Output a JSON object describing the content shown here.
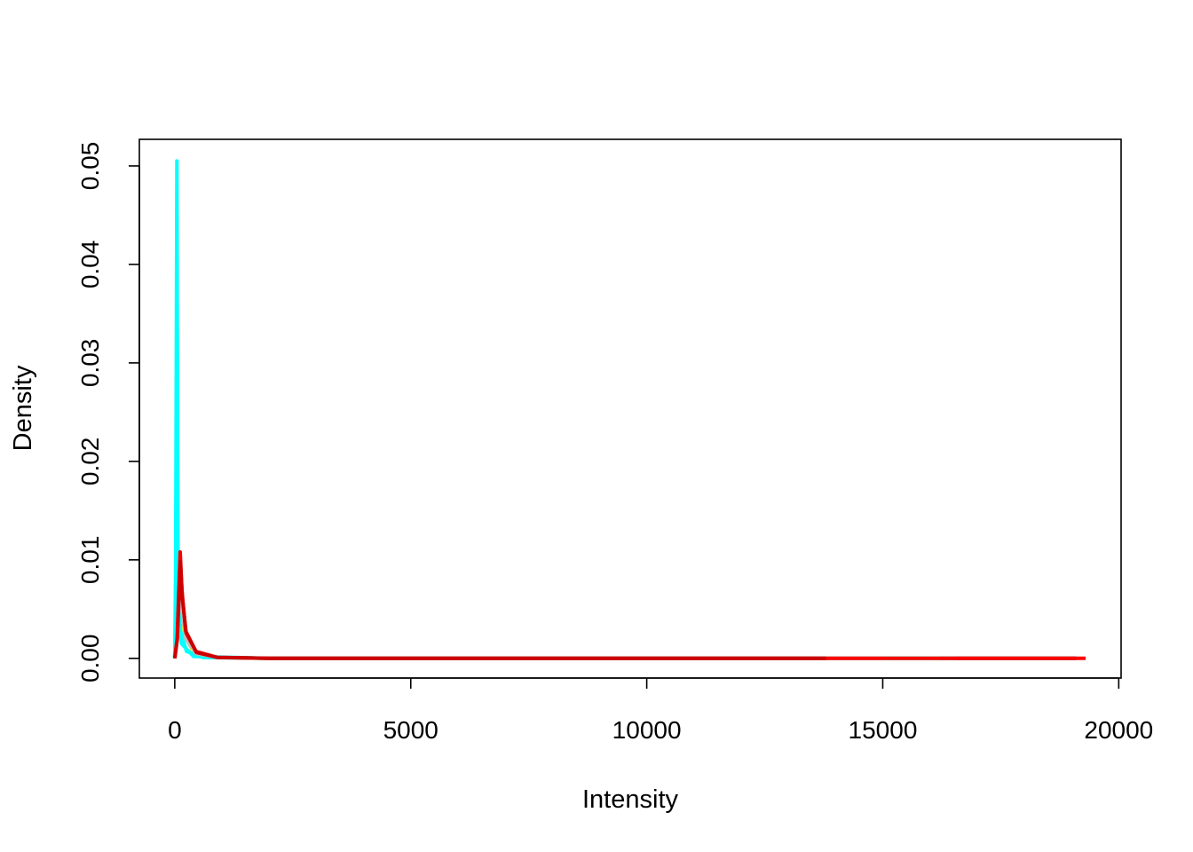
{
  "chart_data": {
    "type": "line",
    "title": "",
    "xlabel": "Intensity",
    "ylabel": "Density",
    "xlim": [
      -750,
      20050
    ],
    "ylim": [
      -0.002,
      0.0527
    ],
    "x_ticks": [
      0,
      5000,
      10000,
      15000,
      20000
    ],
    "x_tick_labels": [
      "0",
      "5000",
      "10000",
      "15000",
      "20000"
    ],
    "y_ticks": [
      0,
      0.01,
      0.02,
      0.03,
      0.04,
      0.05
    ],
    "y_tick_labels": [
      "0.00",
      "0.01",
      "0.02",
      "0.03",
      "0.04",
      "0.05"
    ],
    "grid": false,
    "legend": "none",
    "series": [
      {
        "color": "#000000",
        "values": [
          [
            0,
            0
          ],
          [
            40,
            0.002
          ],
          [
            90,
            0.0098
          ],
          [
            130,
            0.006
          ],
          [
            200,
            0.0025
          ],
          [
            400,
            0.0006
          ],
          [
            800,
            0.0001
          ],
          [
            2000,
            0
          ],
          [
            19100,
            0
          ]
        ]
      },
      {
        "color": "#ffff00",
        "values": [
          [
            0,
            0
          ],
          [
            40,
            0.002
          ],
          [
            95,
            0.0095
          ],
          [
            135,
            0.006
          ],
          [
            200,
            0.0025
          ],
          [
            400,
            0.0006
          ],
          [
            800,
            0.0001
          ],
          [
            2000,
            0
          ],
          [
            16200,
            0
          ]
        ]
      },
      {
        "color": "#00ffff",
        "values": [
          [
            0,
            0
          ],
          [
            20,
            0.01
          ],
          [
            45,
            0.0505
          ],
          [
            65,
            0.012
          ],
          [
            110,
            0.003
          ],
          [
            250,
            0.0007
          ],
          [
            600,
            0.0001
          ],
          [
            2000,
            0
          ],
          [
            16550,
            0
          ]
        ]
      },
      {
        "color": "#00ffff",
        "values": [
          [
            0,
            0
          ],
          [
            25,
            0.008
          ],
          [
            45,
            0.038
          ],
          [
            70,
            0.006
          ],
          [
            140,
            0.0015
          ],
          [
            400,
            0.0002
          ],
          [
            2000,
            0
          ],
          [
            16000,
            0
          ]
        ]
      },
      {
        "color": "#bebebe",
        "values": [
          [
            0,
            0
          ],
          [
            50,
            0.002
          ],
          [
            110,
            0.0088
          ],
          [
            150,
            0.005
          ],
          [
            230,
            0.002
          ],
          [
            450,
            0.0005
          ],
          [
            900,
            0.0001
          ],
          [
            2000,
            0
          ],
          [
            15000,
            0
          ]
        ]
      },
      {
        "color": "#ff0000",
        "values": [
          [
            0,
            0
          ],
          [
            50,
            0.002
          ],
          [
            115,
            0.0108
          ],
          [
            150,
            0.007
          ],
          [
            230,
            0.0028
          ],
          [
            450,
            0.0007
          ],
          [
            900,
            0.0001
          ],
          [
            2000,
            0
          ],
          [
            19300,
            0
          ]
        ]
      },
      {
        "color": "#cd0000",
        "values": [
          [
            0,
            0
          ],
          [
            55,
            0.002
          ],
          [
            120,
            0.0098
          ],
          [
            160,
            0.0062
          ],
          [
            240,
            0.0026
          ],
          [
            460,
            0.0006
          ],
          [
            900,
            0.0001
          ],
          [
            2000,
            0
          ],
          [
            13800,
            0
          ]
        ]
      }
    ]
  }
}
